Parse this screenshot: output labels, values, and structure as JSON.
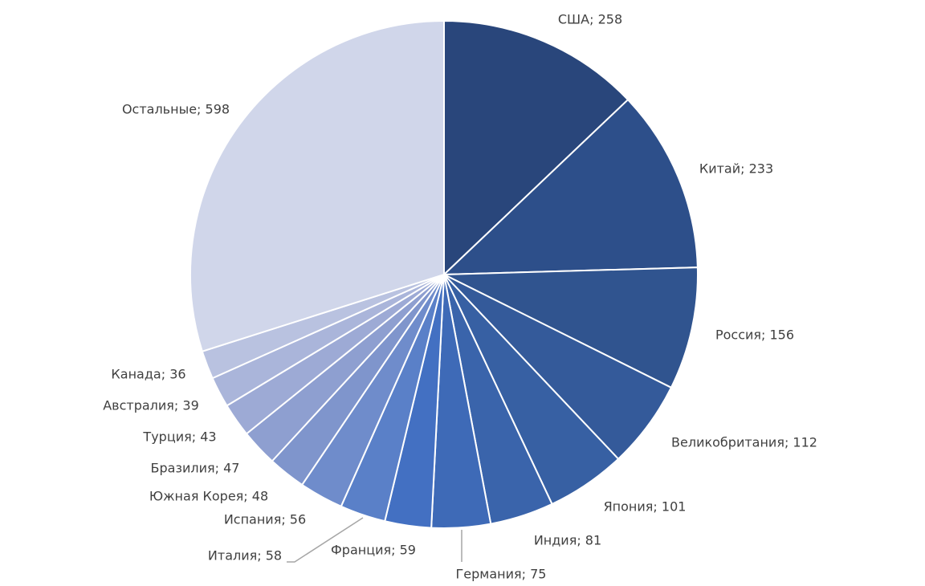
{
  "chart_data": {
    "type": "pie",
    "categories": [
      "США",
      "Китай",
      "Россия",
      "Великобритания",
      "Япония",
      "Индия",
      "Германия",
      "Франция",
      "Италия",
      "Испания",
      "Южная Корея",
      "Бразилия",
      "Турция",
      "Австралия",
      "Канада",
      "Остальные"
    ],
    "values": [
      258,
      233,
      156,
      112,
      101,
      81,
      75,
      59,
      58,
      56,
      48,
      47,
      43,
      39,
      36,
      598
    ],
    "value_labels": [
      "США; 258",
      "Китай; 233",
      "Россия; 156",
      "Великобритания; 112",
      "Япония; 101",
      "Индия; 81",
      "Германия; 75",
      "Франция; 59",
      "Италия; 58",
      "Испания; 56",
      "Южная Корея; 48",
      "Бразилия; 47",
      "Турция; 43",
      "Австралия; 39",
      "Канада; 36",
      "Остальные; 598"
    ],
    "colors": [
      "#29467b",
      "#2d4f8a",
      "#30548f",
      "#345a9a",
      "#3760a3",
      "#3a64ab",
      "#3e6ab7",
      "#4370c2",
      "#5a80c8",
      "#6f8ccb",
      "#7f95cc",
      "#8e9fd0",
      "#9daad5",
      "#aab5da",
      "#b9c2e0",
      "#d0d6ea"
    ]
  }
}
